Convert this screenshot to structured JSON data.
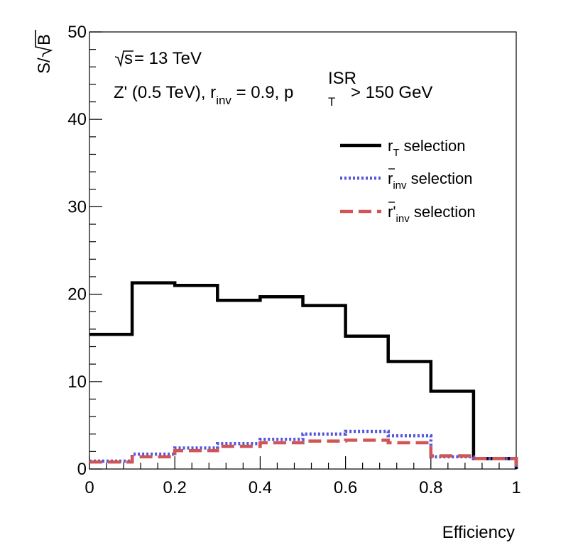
{
  "chart_data": {
    "type": "line",
    "step": true,
    "xlabel": "Efficiency",
    "ylabel_text": "S/",
    "ylabel_sqrt_arg": "B",
    "xlim": [
      0,
      1
    ],
    "ylim": [
      0,
      50
    ],
    "x_ticks": [
      0,
      0.2,
      0.4,
      0.6,
      0.8,
      1
    ],
    "x_tick_labels": [
      "0",
      "0.2",
      "0.4",
      "0.6",
      "0.8",
      "1"
    ],
    "y_ticks": [
      0,
      10,
      20,
      30,
      40,
      50
    ],
    "y_tick_labels": [
      "0",
      "10",
      "20",
      "30",
      "40",
      "50"
    ],
    "grid": false,
    "legend_position": "top-right",
    "annotations": {
      "energy_sqrt_arg": "s",
      "energy_value": " = 13 TeV",
      "model_prefix": "Z' (0.5 TeV), r",
      "model_rinv_sub": "inv",
      "model_rinv_value": " = 0.9, p",
      "model_pt_sub": "T",
      "model_pt_sup": "ISR",
      "model_pt_value": " > 150 GeV"
    },
    "bin_edges": [
      0,
      0.1,
      0.2,
      0.3,
      0.4,
      0.5,
      0.6,
      0.7,
      0.8,
      0.9,
      1.0
    ],
    "series": [
      {
        "legend_main": "r",
        "legend_sub": "T",
        "legend_suffix": " selection",
        "color": "#000000",
        "style": "solid",
        "values": [
          15.4,
          21.3,
          21.0,
          19.3,
          19.7,
          18.7,
          15.2,
          12.3,
          8.9,
          1.2
        ]
      },
      {
        "legend_main": "r",
        "legend_sub": "inv",
        "legend_suffix": " selection",
        "color": "#5555dd",
        "style": "dotted",
        "values": [
          0.9,
          1.7,
          2.4,
          2.9,
          3.4,
          4.0,
          4.3,
          3.8,
          1.4,
          1.2
        ]
      },
      {
        "legend_main": "r'",
        "legend_sub": "inv",
        "legend_suffix": " selection",
        "color": "#d05555",
        "style": "dashed",
        "values": [
          0.8,
          1.4,
          2.1,
          2.6,
          3.0,
          3.2,
          3.3,
          3.0,
          1.5,
          1.2
        ]
      }
    ]
  }
}
